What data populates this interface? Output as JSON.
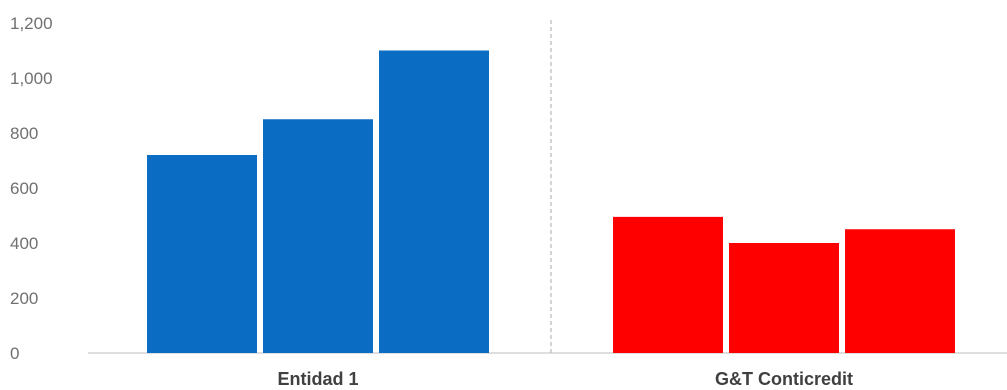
{
  "chart_data": {
    "type": "bar",
    "title": "",
    "xlabel": "",
    "ylabel": "",
    "ylim": [
      0,
      1200
    ],
    "yticks": [
      "0",
      "200",
      "400",
      "600",
      "800",
      "1,000",
      "1,200"
    ],
    "ytick_values": [
      0,
      200,
      400,
      600,
      800,
      1000,
      1200
    ],
    "grid": false,
    "legend": "none",
    "groups": [
      {
        "category": "Entidad 1",
        "color": "#0b6cc4",
        "values": [
          720,
          850,
          1100
        ]
      },
      {
        "category": "G&T Conticredit",
        "color": "#ff0000",
        "values": [
          495,
          400,
          450
        ]
      }
    ]
  }
}
